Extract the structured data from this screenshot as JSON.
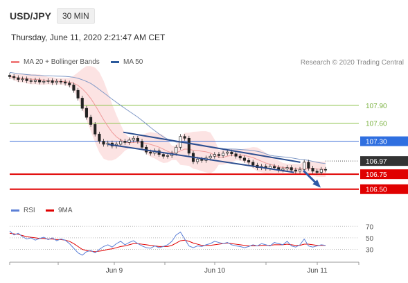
{
  "header": {
    "symbol": "USD/JPY",
    "timeframe": "30 MIN",
    "datetime": "Thursday, June 11, 2020 2:21:47 AM CET",
    "credit": "Research © 2020 Trading Central"
  },
  "chart_data": [
    {
      "type": "candlestick",
      "panel": "price",
      "legend": [
        {
          "name": "MA 20 + Bollinger Bands",
          "color": "#f08080"
        },
        {
          "name": "MA 50",
          "color": "#2c5a9c"
        }
      ],
      "ylim": [
        106.3,
        108.5
      ],
      "x_tick_labels": [
        "Jun 9",
        "Jun 10",
        "Jun 11"
      ],
      "close_series": [
        108.38,
        108.36,
        108.33,
        108.34,
        108.31,
        108.3,
        108.32,
        108.29,
        108.3,
        108.31,
        108.28,
        108.3,
        108.29,
        108.27,
        108.24,
        108.15,
        108.02,
        107.85,
        107.7,
        107.58,
        107.42,
        107.3,
        107.25,
        107.27,
        107.22,
        107.25,
        107.3,
        107.28,
        107.32,
        107.35,
        107.3,
        107.2,
        107.12,
        107.1,
        107.14,
        107.08,
        107.05,
        107.06,
        107.1,
        107.2,
        107.38,
        107.35,
        107.1,
        106.96,
        107.0,
        106.98,
        107.02,
        107.05,
        107.08,
        107.06,
        107.1,
        107.12,
        107.09,
        107.05,
        107.02,
        106.98,
        106.95,
        106.9,
        106.86,
        106.88,
        106.85,
        106.88,
        106.86,
        106.82,
        106.84,
        106.86,
        106.82,
        106.8,
        106.83,
        106.95,
        106.85,
        106.8,
        106.78,
        106.83,
        106.82
      ],
      "resistance_levels": [
        107.9,
        107.6,
        107.3
      ],
      "current_price": 106.97,
      "support_levels": [
        106.75,
        106.5
      ],
      "channel": {
        "upper": [
          [
            0.36,
            107.45
          ],
          [
            0.92,
            106.95
          ]
        ],
        "lower": [
          [
            0.31,
            107.25
          ],
          [
            0.9,
            106.78
          ]
        ]
      },
      "target_arrow": [
        [
          0.93,
          106.81
        ],
        [
          0.98,
          106.55
        ]
      ]
    },
    {
      "type": "line",
      "panel": "indicator",
      "legend": [
        {
          "name": "RSI",
          "color": "#5b7fd6"
        },
        {
          "name": "9MA",
          "color": "#e00000"
        }
      ],
      "ylim": [
        15,
        80
      ],
      "levels": [
        70,
        50,
        30
      ],
      "rsi": [
        62,
        55,
        58,
        52,
        48,
        50,
        46,
        49,
        51,
        47,
        50,
        45,
        48,
        46,
        40,
        32,
        24,
        20,
        26,
        28,
        24,
        30,
        35,
        38,
        34,
        40,
        44,
        38,
        42,
        45,
        40,
        36,
        33,
        32,
        36,
        33,
        35,
        38,
        44,
        55,
        60,
        48,
        36,
        33,
        36,
        35,
        38,
        40,
        44,
        42,
        40,
        42,
        38,
        36,
        35,
        33,
        35,
        38,
        36,
        40,
        38,
        36,
        42,
        40,
        38,
        44,
        36,
        34,
        38,
        48,
        36,
        34,
        36,
        38,
        37
      ],
      "ma9": [
        58,
        57,
        56,
        54,
        52,
        51,
        50,
        49,
        49,
        48,
        48,
        47,
        47,
        46,
        44,
        40,
        35,
        30,
        28,
        27,
        26,
        27,
        28,
        30,
        31,
        33,
        35,
        36,
        38,
        40,
        40,
        39,
        38,
        37,
        36,
        35,
        35,
        35,
        37,
        41,
        45,
        46,
        44,
        41,
        39,
        37,
        37,
        37,
        38,
        39,
        40,
        41,
        40,
        39,
        38,
        37,
        36,
        36,
        36,
        37,
        37,
        37,
        38,
        38,
        38,
        39,
        38,
        37,
        37,
        39,
        39,
        38,
        37,
        37,
        37
      ]
    }
  ]
}
